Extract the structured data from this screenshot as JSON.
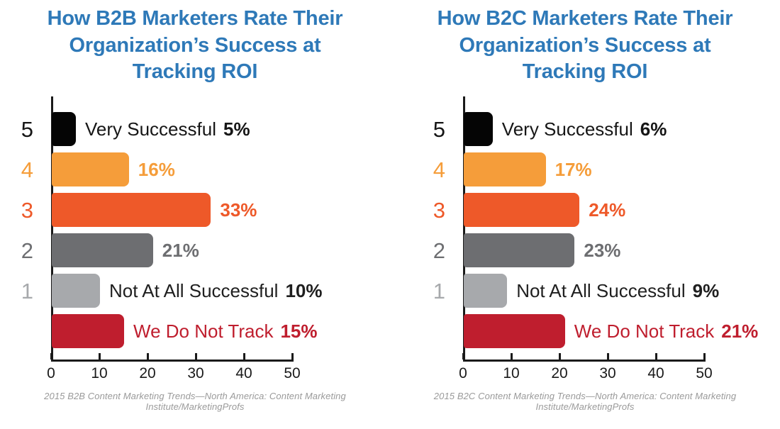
{
  "chart_data": [
    {
      "type": "bar",
      "orientation": "horizontal",
      "title": "How B2B Marketers Rate Their Organization’s Success at Tracking ROI",
      "title_lines": [
        "How B2B Marketers Rate Their",
        "Organization’s Success at",
        "Tracking ROI"
      ],
      "source": "2015 B2B Content Marketing Trends—North America: Content Marketing Institute/MarketingProfs",
      "xlim": [
        0,
        50
      ],
      "x_ticks": [
        "0",
        "10",
        "20",
        "30",
        "40",
        "50"
      ],
      "title_color": "#2E79B8",
      "rows": [
        {
          "category": "5",
          "prefix": "Very Successful",
          "pct": "5%",
          "value": 5,
          "bar_color": "#050505",
          "label_color": "#161616",
          "category_color": "#161616"
        },
        {
          "category": "4",
          "prefix": "",
          "pct": "16%",
          "value": 16,
          "bar_color": "#F59D3A",
          "label_color": "#F59D3A",
          "category_color": "#F59D3A"
        },
        {
          "category": "3",
          "prefix": "",
          "pct": "33%",
          "value": 33,
          "bar_color": "#EE5929",
          "label_color": "#EE5929",
          "category_color": "#EE5929"
        },
        {
          "category": "2",
          "prefix": "",
          "pct": "21%",
          "value": 21,
          "bar_color": "#6D6E71",
          "label_color": "#6D6E71",
          "category_color": "#6D6E71"
        },
        {
          "category": "1",
          "prefix": "Not At All Successful",
          "pct": "10%",
          "value": 10,
          "bar_color": "#A7A9AC",
          "label_color": "#1F1F1F",
          "category_color": "#A7A9AC"
        },
        {
          "category": "",
          "prefix": "We Do Not Track",
          "pct": "15%",
          "value": 15,
          "bar_color": "#BF1E2E",
          "label_color": "#BF1E2E",
          "category_color": "#BF1E2E"
        }
      ]
    },
    {
      "type": "bar",
      "orientation": "horizontal",
      "title": "How B2C Marketers Rate Their Organization’s Success at Tracking ROI",
      "title_lines": [
        "How B2C Marketers Rate Their",
        "Organization’s Success at",
        "Tracking ROI"
      ],
      "source": "2015 B2C Content Marketing Trends—North America: Content Marketing Institute/MarketingProfs",
      "xlim": [
        0,
        50
      ],
      "x_ticks": [
        "0",
        "10",
        "20",
        "30",
        "40",
        "50"
      ],
      "title_color": "#2E79B8",
      "rows": [
        {
          "category": "5",
          "prefix": "Very Successful",
          "pct": "6%",
          "value": 6,
          "bar_color": "#050505",
          "label_color": "#161616",
          "category_color": "#161616"
        },
        {
          "category": "4",
          "prefix": "",
          "pct": "17%",
          "value": 17,
          "bar_color": "#F59D3A",
          "label_color": "#F59D3A",
          "category_color": "#F59D3A"
        },
        {
          "category": "3",
          "prefix": "",
          "pct": "24%",
          "value": 24,
          "bar_color": "#EE5929",
          "label_color": "#EE5929",
          "category_color": "#EE5929"
        },
        {
          "category": "2",
          "prefix": "",
          "pct": "23%",
          "value": 23,
          "bar_color": "#6D6E71",
          "label_color": "#6D6E71",
          "category_color": "#6D6E71"
        },
        {
          "category": "1",
          "prefix": "Not At All Successful",
          "pct": "9%",
          "value": 9,
          "bar_color": "#A7A9AC",
          "label_color": "#1F1F1F",
          "category_color": "#A7A9AC"
        },
        {
          "category": "",
          "prefix": "We Do Not Track",
          "pct": "21%",
          "value": 21,
          "bar_color": "#BF1E2E",
          "label_color": "#BF1E2E",
          "category_color": "#BF1E2E"
        }
      ]
    }
  ],
  "style": {
    "axis_color": "#1a1a1a",
    "source_text_color": "#9A9A9A",
    "background": "#ffffff"
  }
}
